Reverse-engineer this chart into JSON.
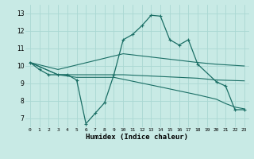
{
  "xlabel": "Humidex (Indice chaleur)",
  "background_color": "#c8eae5",
  "grid_color": "#aad8d3",
  "line_color": "#1a6e65",
  "xlim": [
    -0.5,
    23.5
  ],
  "ylim": [
    6.5,
    13.5
  ],
  "yticks": [
    7,
    8,
    9,
    10,
    11,
    12,
    13
  ],
  "xticks": [
    0,
    1,
    2,
    3,
    4,
    5,
    6,
    7,
    8,
    9,
    10,
    11,
    12,
    13,
    14,
    15,
    16,
    17,
    18,
    19,
    20,
    21,
    22,
    23
  ],
  "line_main": {
    "x": [
      0,
      1,
      2,
      3,
      4,
      5,
      6,
      7,
      8,
      9,
      10,
      11,
      12,
      13,
      14,
      15,
      16,
      17,
      18,
      20,
      21,
      22,
      23
    ],
    "y": [
      10.2,
      9.8,
      9.5,
      9.5,
      9.5,
      9.2,
      6.7,
      7.3,
      7.9,
      9.5,
      11.5,
      11.8,
      12.3,
      12.9,
      12.85,
      11.5,
      11.2,
      11.5,
      10.1,
      9.1,
      8.85,
      7.5,
      7.5
    ]
  },
  "line_upper": {
    "x": [
      0,
      3,
      10,
      18,
      20,
      23
    ],
    "y": [
      10.2,
      9.8,
      10.7,
      10.2,
      10.1,
      10.0
    ]
  },
  "line_mid": {
    "x": [
      0,
      3,
      10,
      18,
      20,
      23
    ],
    "y": [
      10.2,
      9.5,
      9.5,
      9.3,
      9.2,
      9.15
    ]
  },
  "line_lower": {
    "x": [
      0,
      3,
      5,
      9,
      14,
      18,
      20,
      21,
      22,
      23
    ],
    "y": [
      10.2,
      9.5,
      9.35,
      9.35,
      8.8,
      8.35,
      8.1,
      7.85,
      7.65,
      7.55
    ]
  }
}
